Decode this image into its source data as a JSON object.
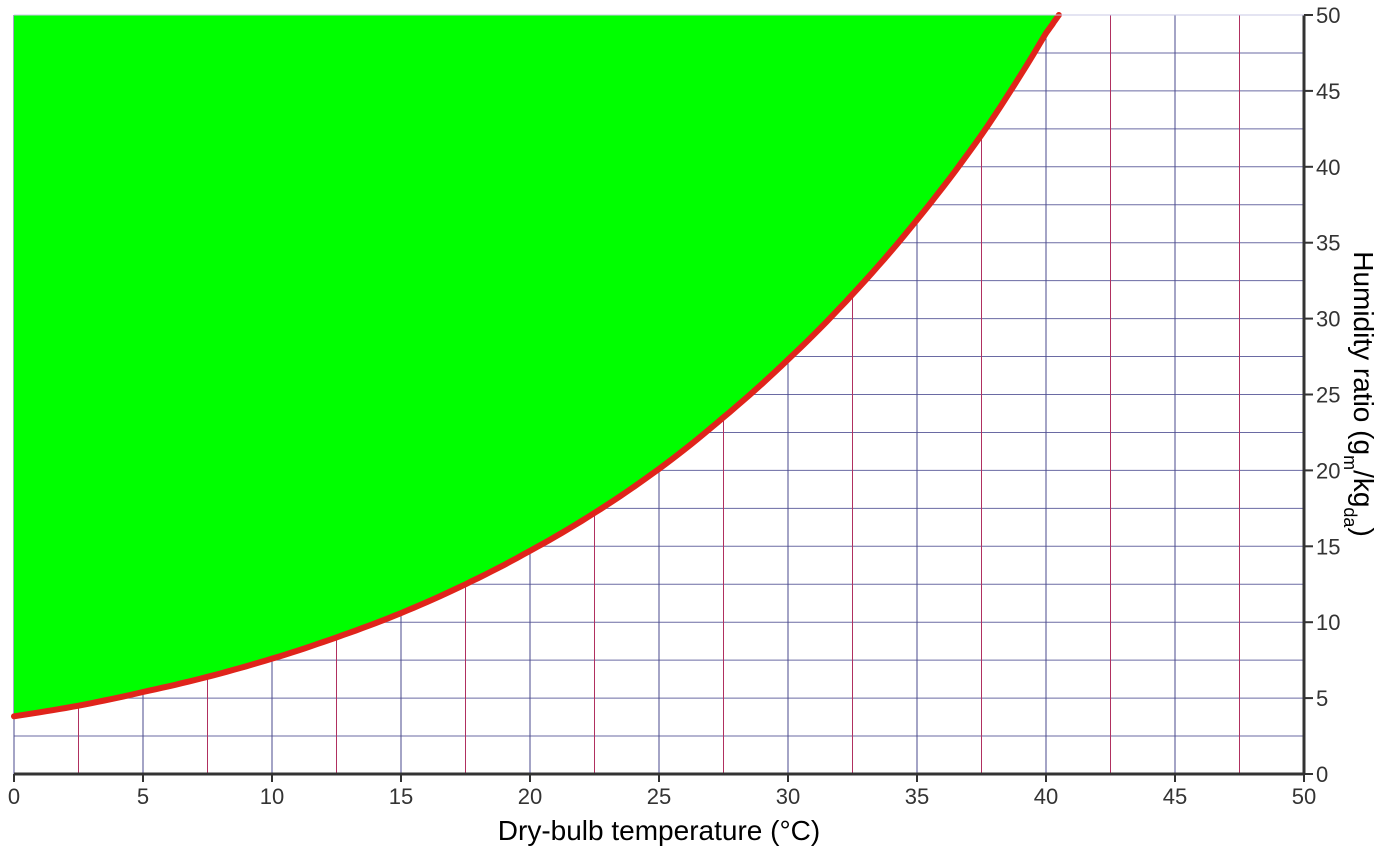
{
  "chart_data": {
    "type": "area",
    "xlabel": "Dry-bulb temperature (°C)",
    "ylabel": {
      "prefix": "Humidity ratio (g",
      "sub1": "m",
      "mid": "/kg",
      "sub2": "da",
      "suffix": ")"
    },
    "xlim": [
      0,
      50
    ],
    "ylim": [
      0,
      50
    ],
    "x_ticks": [
      0,
      5,
      10,
      15,
      20,
      25,
      30,
      35,
      40,
      45,
      50
    ],
    "y_ticks": [
      0,
      5,
      10,
      15,
      20,
      25,
      30,
      35,
      40,
      45,
      50
    ],
    "x_tick_labels": [
      "0",
      "5",
      "10",
      "15",
      "20",
      "25",
      "30",
      "35",
      "40",
      "45",
      "50"
    ],
    "y_tick_labels": [
      "0",
      "5",
      "10",
      "15",
      "20",
      "25",
      "30",
      "35",
      "40",
      "45",
      "50"
    ],
    "x_grid_step": 2.5,
    "y_grid_step": 2.5,
    "y_axis_side": "right",
    "grid": true,
    "series": [
      {
        "role": "saturation-curve",
        "x": [
          0,
          2.5,
          5,
          7.5,
          10,
          12.5,
          15,
          17.5,
          20,
          22.5,
          25,
          27.5,
          30,
          32.5,
          35,
          37.5,
          40,
          40.5
        ],
        "y": [
          3.8,
          4.5,
          5.4,
          6.4,
          7.6,
          9.0,
          10.6,
          12.5,
          14.7,
          17.2,
          20.1,
          23.5,
          27.3,
          31.6,
          36.5,
          42.1,
          48.8,
          50.0
        ]
      }
    ],
    "colors": {
      "fill": "#00ff00",
      "curve": "#e0241b",
      "grid_even": "#4a4a8c",
      "grid_odd": "#b03060",
      "hgrid": "#5a5a9a",
      "axis": "#333333"
    }
  }
}
